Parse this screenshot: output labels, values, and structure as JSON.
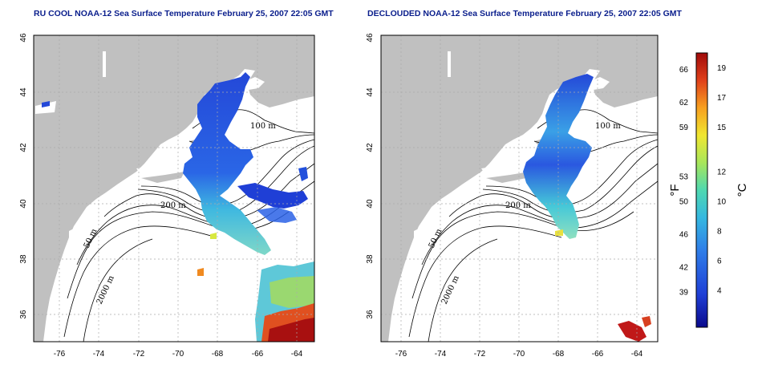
{
  "titles": {
    "left": "RU COOL NOAA-12 Sea Surface Temperature February 25, 2007 22:05 GMT",
    "right": "DECLOUDED NOAA-12 Sea Surface Temperature February 25, 2007 22:05 GMT"
  },
  "map": {
    "lon_range": [
      -77,
      -63
    ],
    "lat_range": [
      35,
      46
    ],
    "lon_ticks": [
      -76,
      -74,
      -72,
      -70,
      -68,
      -66,
      -64
    ],
    "lat_ticks": [
      36,
      38,
      40,
      42,
      44,
      46
    ],
    "contour_labels": [
      "100 m",
      "200 m",
      "50 m",
      "2000 m"
    ],
    "land_color": "#c0c0c0",
    "grid": "dotted"
  },
  "colorbar": {
    "fahrenheit_label": "°F",
    "celsius_label": "°C",
    "fahrenheit_ticks": [
      39,
      42,
      46,
      50,
      53,
      59,
      62,
      66
    ],
    "celsius_ticks": [
      4,
      6,
      8,
      10,
      12,
      15,
      17,
      19
    ],
    "celsius_range": [
      1.5,
      20
    ],
    "colors": [
      "#0a0a8c",
      "#1f3fd6",
      "#2f7ee8",
      "#35b8e0",
      "#4fd8b0",
      "#a8e65a",
      "#f0e630",
      "#f7a020",
      "#e0401a",
      "#a00a0a"
    ]
  }
}
